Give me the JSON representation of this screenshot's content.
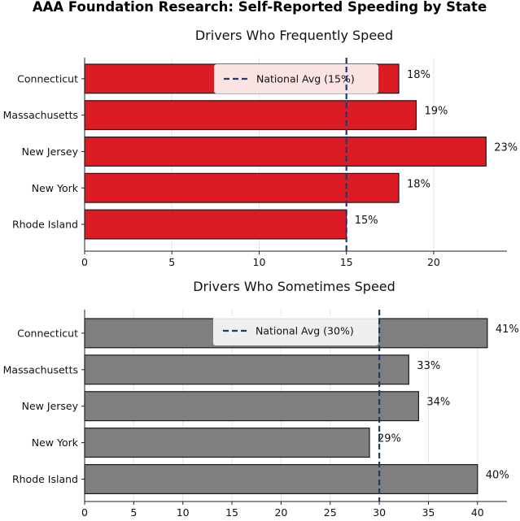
{
  "figure": {
    "title": "AAA Foundation Research: Self-Reported Speeding by State"
  },
  "chart_data": [
    {
      "type": "bar",
      "orientation": "horizontal",
      "title": "Drivers Who Frequently Speed",
      "xlabel": "",
      "ylabel": "",
      "categories": [
        "Connecticut",
        "Massachusetts",
        "New Jersey",
        "New York",
        "Rhode Island"
      ],
      "values": [
        18,
        19,
        23,
        18,
        15
      ],
      "value_labels": [
        "18%",
        "19%",
        "23%",
        "18%",
        "15%"
      ],
      "xticks": [
        0,
        5,
        10,
        15,
        20
      ],
      "xlim": [
        0,
        24.2
      ],
      "reference_line": {
        "value": 15,
        "label": "National Avg (15%)"
      },
      "legend": "top-center",
      "grid": true,
      "bar_color": "#dc1c24"
    },
    {
      "type": "bar",
      "orientation": "horizontal",
      "title": "Drivers Who Sometimes Speed",
      "xlabel": "",
      "ylabel": "",
      "categories": [
        "Connecticut",
        "Massachusetts",
        "New Jersey",
        "New York",
        "Rhode Island"
      ],
      "values": [
        41,
        33,
        34,
        29,
        40
      ],
      "value_labels": [
        "41%",
        "33%",
        "34%",
        "29%",
        "40%"
      ],
      "xticks": [
        0,
        5,
        10,
        15,
        20,
        25,
        30,
        35,
        40
      ],
      "xlim": [
        0,
        43
      ],
      "reference_line": {
        "value": 30,
        "label": "National Avg (30%)"
      },
      "legend": "top-center",
      "grid": true,
      "bar_color": "#7f7f7f"
    }
  ],
  "colors": {
    "reference_line": "#1f3a6e",
    "axis": "#222222",
    "grid": "#e6e6e6",
    "bar_edge": "#1a1a1a"
  }
}
